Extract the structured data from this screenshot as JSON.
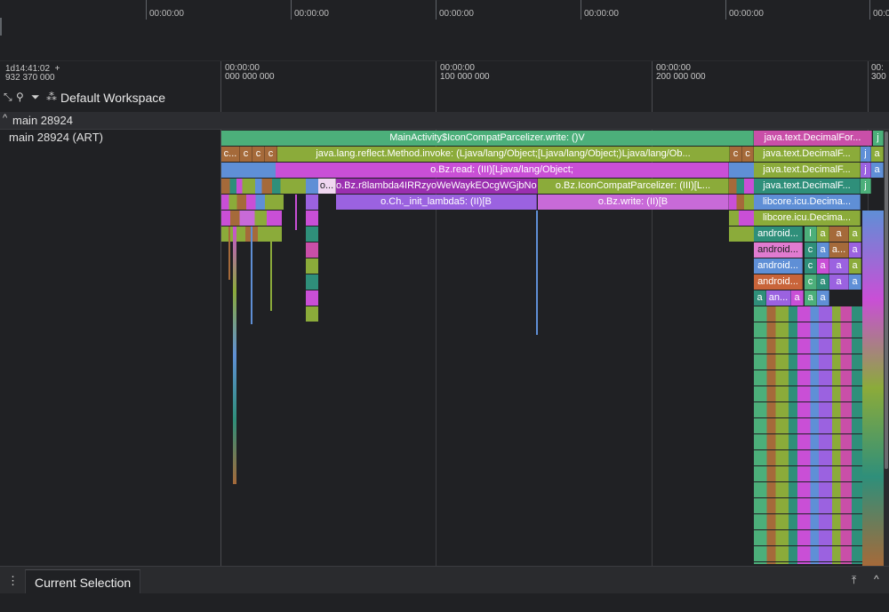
{
  "top_timeline": {
    "labels": [
      "00:00:00",
      "00:00:00",
      "00:00:00",
      "00:00:00",
      "00:00:00",
      "00:00:00"
    ]
  },
  "time_header": {
    "start_time": "1d14:41:02  +\n932 370 000",
    "labels": [
      "00:00:00\n000 000 000",
      "00:00:00\n100 000 000",
      "00:00:00\n200 000 000",
      "00:\n300"
    ]
  },
  "toolbar": {
    "workspace_label": "Default Workspace",
    "icons": [
      "collapse-icon",
      "unpin-icon",
      "filter-icon",
      "workspace-icon"
    ]
  },
  "track_group": {
    "title": "main 28924",
    "caret": "^"
  },
  "track": {
    "label": "main 28924 (ART)",
    "slices": [
      [
        "MainActivity$IconCompatParcelizer.write: ()V",
        "java.text.DecimalFor...",
        "j"
      ],
      [
        "c...",
        "c",
        "c",
        "c",
        "java.lang.reflect.Method.invoke: (Ljava/lang/Object;[Ljava/lang/Object;)Ljava/lang/Ob...",
        "c",
        "c",
        "java.text.DecimalF...",
        "j",
        "a"
      ],
      [
        "o.Bz.read: (III)[Ljava/lang/Object;",
        "java.text.DecimalF...",
        "j",
        "a"
      ],
      [
        "o...",
        "o.Bz.r8lambda4IRRzyoWeWaykEOcgWGjbNoG...",
        "o.Bz.IconCompatParcelizer: (III)[L...",
        "java.text.DecimalF...",
        "j"
      ],
      [
        "o.Ch._init_lambda5: (II)[B",
        "o.Bz.write: (II)[B",
        "libcore.icu.Decima..."
      ],
      [
        "libcore.icu.Decima..."
      ],
      [
        "android...",
        "l",
        "a",
        "a",
        "a"
      ],
      [
        "android...",
        "c",
        "a",
        "a...",
        "a"
      ],
      [
        "android...",
        "c",
        "a",
        "a",
        "a"
      ],
      [
        "android...",
        "c",
        "a",
        "a",
        "a"
      ]
    ],
    "deep_labels": [
      "a",
      "an...",
      "a",
      "a",
      "a"
    ]
  },
  "bottom_panel": {
    "menu_icon": "⋮",
    "tab": "Current Selection",
    "pin_icon": "⤒",
    "collapse_icon": "^"
  },
  "colors": {
    "background": "#202124",
    "green": "#4caf7a",
    "olive": "#8bab3a",
    "magenta": "#c94fd6",
    "purple": "#9b62e0",
    "teal": "#2f8f7a",
    "brown": "#a56a3a",
    "blue": "#5f8fd6"
  }
}
